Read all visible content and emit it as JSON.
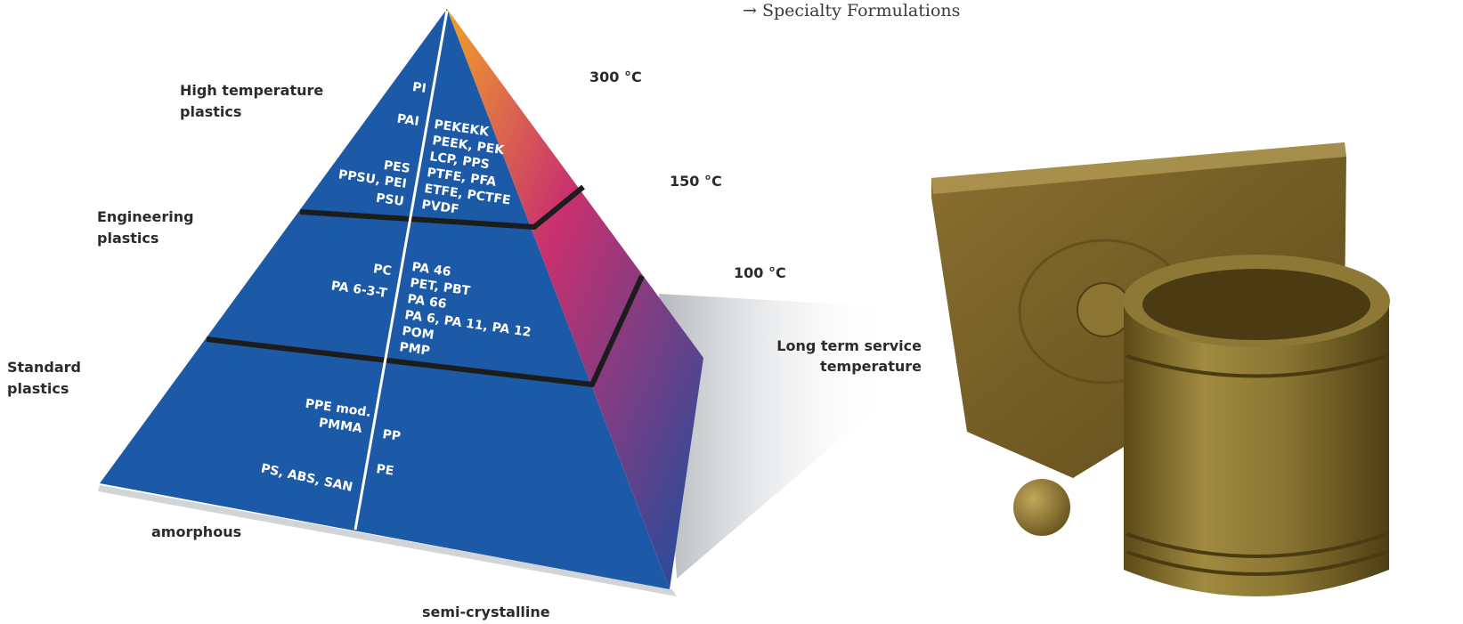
{
  "link": {
    "arrow": "→",
    "text": "Specialty Formulations"
  },
  "categories": [
    {
      "id": "high",
      "lines": [
        "High temperature",
        "plastics"
      ]
    },
    {
      "id": "engineering",
      "lines": [
        "Engineering",
        "plastics"
      ]
    },
    {
      "id": "standard",
      "lines": [
        "Standard",
        "plastics"
      ]
    }
  ],
  "temperatures": [
    "300 °C",
    "150 °C",
    "100 °C"
  ],
  "service_label": [
    "Long term service",
    "temperature"
  ],
  "axes": {
    "amorphous": "amorphous",
    "semi_crystalline": "semi-crystalline"
  },
  "materials": {
    "high_amorphous": [
      "PI",
      "PAI",
      "PES",
      "PPSU, PEI",
      "PSU"
    ],
    "high_semi": [
      "PEKEKK",
      "PEEK, PEK",
      "LCP, PPS",
      "PTFE, PFA",
      "ETFE, PCTFE",
      "PVDF"
    ],
    "eng_amorphous": [
      "PC",
      "PA 6-3-T"
    ],
    "eng_semi": [
      "PA 46",
      "PET, PBT",
      "PA 66",
      "PA 6, PA 11, PA 12",
      "POM",
      "PMP"
    ],
    "std_amorphous": [
      "PPE mod.",
      "PMMA",
      "PS, ABS, SAN"
    ],
    "std_semi": [
      "PP",
      "PE"
    ]
  },
  "colors": {
    "top": "#f9d21f",
    "upper": "#f18f27",
    "middle": "#ea4d3c",
    "lower": "#c8197e",
    "base": "#1e57a8",
    "band": "#1c1c1c",
    "product": "#7d6a2e"
  },
  "icons": {
    "photo": "molded-parts-photo"
  }
}
